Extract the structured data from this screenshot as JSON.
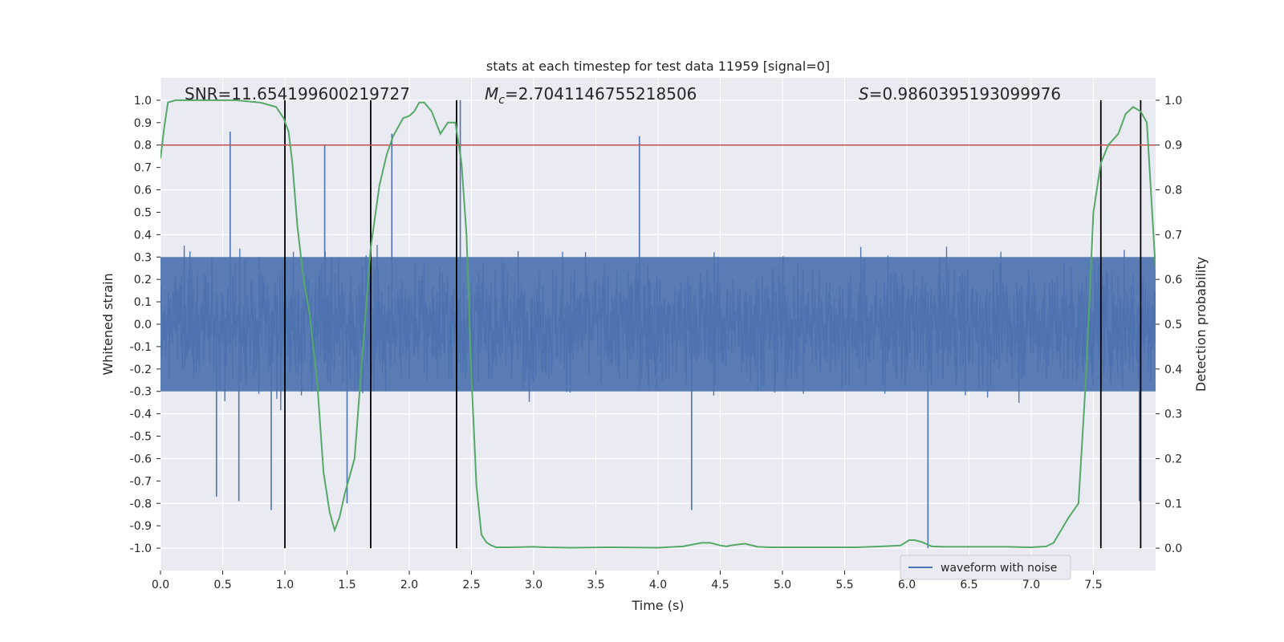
{
  "chart_data": {
    "type": "line",
    "title": "stats at each timestep for test data 11959 [signal=0]",
    "xlabel": "Time (s)",
    "ylabel_left": "Whitened strain",
    "ylabel_right": "Detection probability",
    "xlim": [
      0,
      8
    ],
    "ylim_left": [
      -1.1,
      1.1
    ],
    "ylim_right": [
      -0.05,
      1.05
    ],
    "xticks": [
      "0.0",
      "0.5",
      "1.0",
      "1.5",
      "2.0",
      "2.5",
      "3.0",
      "3.5",
      "4.0",
      "4.5",
      "5.0",
      "5.5",
      "6.0",
      "6.5",
      "7.0",
      "7.5"
    ],
    "yticks_left": [
      "-1.0",
      "-0.9",
      "-0.8",
      "-0.7",
      "-0.6",
      "-0.5",
      "-0.4",
      "-0.3",
      "-0.2",
      "-0.1",
      "0.0",
      "0.1",
      "0.2",
      "0.3",
      "0.4",
      "0.5",
      "0.6",
      "0.7",
      "0.8",
      "0.9",
      "1.0"
    ],
    "yticks_right": [
      "0.0",
      "0.1",
      "0.2",
      "0.3",
      "0.4",
      "0.5",
      "0.6",
      "0.7",
      "0.8",
      "0.9",
      "1.0"
    ],
    "grid": true,
    "legend": {
      "position": "lower-right",
      "entries": [
        "waveform with noise"
      ]
    },
    "annotations": {
      "snr": "SNR=11.654199600219727",
      "mc_symbol": "M",
      "mc_sub": "c",
      "mc_value": "=2.7041146755218506",
      "s_symbol": "S",
      "s_value": "=0.9860395193099976"
    },
    "threshold_right": 0.9,
    "vertical_lines_x": [
      1.0,
      1.69,
      2.38,
      7.56,
      7.88
    ],
    "series": [
      {
        "name": "waveform with noise",
        "color": "#4c72b0",
        "kind": "noise-envelope",
        "typical_amplitude": 0.4,
        "peaks": [
          {
            "x": 0.56,
            "y": 0.86
          },
          {
            "x": 1.32,
            "y": 0.8
          },
          {
            "x": 1.86,
            "y": 0.85
          },
          {
            "x": 2.41,
            "y": 1.0
          },
          {
            "x": 3.85,
            "y": 0.84
          },
          {
            "x": 0.89,
            "y": -0.83
          },
          {
            "x": 1.5,
            "y": -0.8
          },
          {
            "x": 0.63,
            "y": -0.79
          },
          {
            "x": 4.27,
            "y": -0.83
          },
          {
            "x": 6.17,
            "y": -1.0
          },
          {
            "x": 7.87,
            "y": -0.79
          },
          {
            "x": 0.45,
            "y": -0.77
          }
        ]
      },
      {
        "name": "detection probability",
        "color": "#55a868",
        "axis": "right",
        "x": [
          0.0,
          0.03,
          0.06,
          0.12,
          0.3,
          0.6,
          0.8,
          0.93,
          0.99,
          1.03,
          1.06,
          1.1,
          1.15,
          1.2,
          1.26,
          1.31,
          1.36,
          1.4,
          1.44,
          1.48,
          1.52,
          1.56,
          1.62,
          1.69,
          1.76,
          1.82,
          1.87,
          1.95,
          2.0,
          2.04,
          2.08,
          2.12,
          2.18,
          2.25,
          2.31,
          2.37,
          2.42,
          2.46,
          2.5,
          2.54,
          2.58,
          2.62,
          2.66,
          2.7,
          2.8,
          3.0,
          3.1,
          3.3,
          3.6,
          4.0,
          4.2,
          4.35,
          4.42,
          4.5,
          4.55,
          4.6,
          4.7,
          4.8,
          4.9,
          5.2,
          5.6,
          5.8,
          5.95,
          6.02,
          6.06,
          6.12,
          6.2,
          6.3,
          6.5,
          6.8,
          7.0,
          7.12,
          7.18,
          7.24,
          7.3,
          7.38,
          7.44,
          7.5,
          7.56,
          7.62,
          7.7,
          7.76,
          7.82,
          7.88,
          7.93,
          8.0
        ],
        "y": [
          0.87,
          0.94,
          0.995,
          1.0,
          1.0,
          1.0,
          0.995,
          0.985,
          0.96,
          0.93,
          0.86,
          0.72,
          0.6,
          0.52,
          0.37,
          0.17,
          0.08,
          0.04,
          0.07,
          0.12,
          0.16,
          0.2,
          0.42,
          0.67,
          0.81,
          0.88,
          0.92,
          0.96,
          0.965,
          0.975,
          0.995,
          0.995,
          0.975,
          0.925,
          0.95,
          0.95,
          0.86,
          0.7,
          0.38,
          0.14,
          0.03,
          0.013,
          0.006,
          0.002,
          0.002,
          0.003,
          0.002,
          0.001,
          0.002,
          0.001,
          0.004,
          0.012,
          0.012,
          0.006,
          0.004,
          0.007,
          0.01,
          0.003,
          0.002,
          0.002,
          0.002,
          0.004,
          0.006,
          0.018,
          0.018,
          0.014,
          0.004,
          0.003,
          0.003,
          0.003,
          0.002,
          0.004,
          0.012,
          0.04,
          0.068,
          0.1,
          0.38,
          0.75,
          0.86,
          0.9,
          0.925,
          0.97,
          0.985,
          0.975,
          0.95,
          0.62
        ]
      }
    ]
  }
}
